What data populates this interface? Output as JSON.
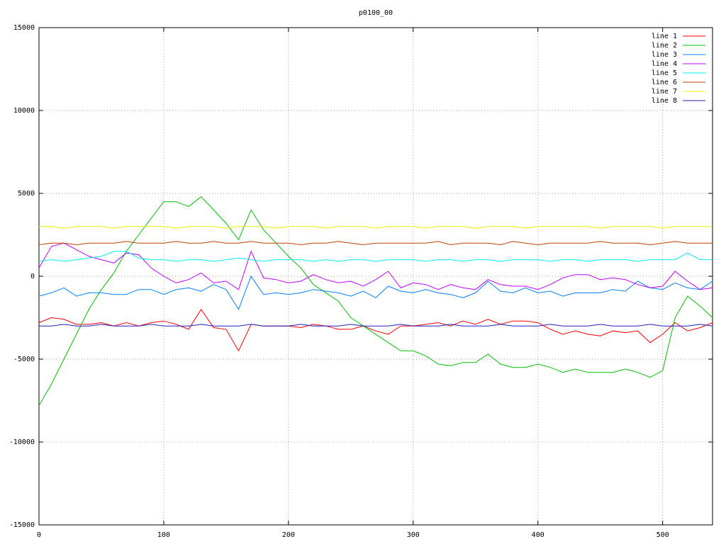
{
  "chart_data": {
    "type": "line",
    "title": "p0100_00",
    "x": [
      0,
      10,
      20,
      30,
      40,
      50,
      60,
      70,
      80,
      90,
      100,
      110,
      120,
      130,
      140,
      150,
      160,
      170,
      180,
      190,
      200,
      210,
      220,
      230,
      240,
      250,
      260,
      270,
      280,
      290,
      300,
      310,
      320,
      330,
      340,
      350,
      360,
      370,
      380,
      390,
      400,
      410,
      420,
      430,
      440,
      450,
      460,
      470,
      480,
      490,
      500,
      510,
      520,
      530,
      540
    ],
    "xlim": [
      0,
      540
    ],
    "xticks": [
      0,
      100,
      200,
      300,
      400,
      500
    ],
    "ylim": [
      -15000,
      15000
    ],
    "yticks": [
      -15000,
      -10000,
      -5000,
      0,
      5000,
      10000,
      15000
    ],
    "grid": true,
    "legend": "top-right",
    "series": [
      {
        "name": "line 1",
        "color": "#ff0000",
        "values": [
          -2800,
          -2500,
          -2600,
          -2900,
          -2900,
          -2800,
          -3000,
          -2800,
          -3000,
          -2800,
          -2700,
          -2900,
          -3200,
          -2000,
          -3100,
          -3200,
          -4500,
          -2900,
          -3000,
          -3000,
          -3000,
          -3100,
          -2900,
          -3000,
          -3200,
          -3200,
          -3000,
          -3300,
          -3500,
          -3000,
          -3000,
          -2900,
          -2800,
          -3000,
          -2700,
          -2900,
          -2600,
          -2900,
          -2700,
          -2700,
          -2800,
          -3200,
          -3500,
          -3300,
          -3500,
          -3600,
          -3300,
          -3400,
          -3300,
          -4000,
          -3500,
          -2800,
          -3300,
          -3100,
          -2800
        ]
      },
      {
        "name": "line 2",
        "color": "#00c000",
        "values": [
          -7800,
          -6500,
          -5000,
          -3500,
          -2000,
          -800,
          200,
          1500,
          2500,
          3500,
          4500,
          4500,
          4200,
          4800,
          4000,
          3200,
          2200,
          4000,
          2800,
          2000,
          1200,
          500,
          -500,
          -1000,
          -1500,
          -2500,
          -3000,
          -3500,
          -4000,
          -4500,
          -4500,
          -4800,
          -5300,
          -5400,
          -5200,
          -5200,
          -4700,
          -5300,
          -5500,
          -5500,
          -5300,
          -5500,
          -5800,
          -5600,
          -5800,
          -5800,
          -5800,
          -5600,
          -5800,
          -6100,
          -5700,
          -2500,
          -1200,
          -1800,
          -2500
        ]
      },
      {
        "name": "line 3",
        "color": "#0080ff",
        "values": [
          -1200,
          -1000,
          -700,
          -1200,
          -1000,
          -1000,
          -1100,
          -1100,
          -800,
          -800,
          -1100,
          -800,
          -700,
          -900,
          -500,
          -800,
          -2000,
          0,
          -1100,
          -1000,
          -1100,
          -1000,
          -800,
          -900,
          -1000,
          -1200,
          -900,
          -1300,
          -600,
          -900,
          -1000,
          -800,
          -1000,
          -1100,
          -1300,
          -1000,
          -300,
          -900,
          -1000,
          -700,
          -1000,
          -900,
          -1200,
          -1000,
          -1000,
          -1000,
          -800,
          -900,
          -300,
          -700,
          -800,
          -400,
          -700,
          -800,
          -300
        ]
      },
      {
        "name": "line 4",
        "color": "#c000ff",
        "values": [
          500,
          1800,
          2000,
          1600,
          1200,
          1000,
          800,
          1400,
          1300,
          500,
          0,
          -400,
          -200,
          200,
          -400,
          -300,
          -800,
          1500,
          -100,
          -200,
          -400,
          -300,
          100,
          -200,
          -400,
          -300,
          -600,
          -200,
          300,
          -700,
          -400,
          -500,
          -800,
          -500,
          -700,
          -800,
          -200,
          -500,
          -600,
          -600,
          -800,
          -500,
          -100,
          100,
          100,
          -200,
          -100,
          -200,
          -500,
          -700,
          -600,
          300,
          -300,
          -800,
          -700
        ]
      },
      {
        "name": "line 5",
        "color": "#00eeee",
        "values": [
          900,
          1000,
          900,
          1000,
          1100,
          1200,
          1500,
          1500,
          1100,
          1000,
          1000,
          900,
          1000,
          1000,
          900,
          1000,
          1100,
          1000,
          900,
          1000,
          1000,
          1000,
          900,
          1000,
          900,
          1000,
          1000,
          900,
          1000,
          1000,
          1000,
          900,
          1000,
          1000,
          900,
          1000,
          1000,
          900,
          1000,
          1000,
          1000,
          900,
          1000,
          1000,
          900,
          1000,
          1000,
          1000,
          900,
          1000,
          1000,
          1000,
          1400,
          1000,
          1000
        ]
      },
      {
        "name": "line 6",
        "color": "#c04000",
        "values": [
          1900,
          2000,
          2000,
          1900,
          2000,
          2000,
          2000,
          2100,
          2000,
          2000,
          2000,
          2100,
          2000,
          2000,
          2100,
          2000,
          2000,
          2100,
          2000,
          2000,
          2000,
          1900,
          2000,
          2000,
          2100,
          2000,
          1900,
          2000,
          2000,
          2000,
          2000,
          2000,
          2100,
          1900,
          2000,
          2000,
          2000,
          1900,
          2100,
          2000,
          1900,
          2000,
          2000,
          2000,
          2000,
          2100,
          2000,
          2000,
          2000,
          1900,
          2000,
          2100,
          2000,
          2000,
          2000
        ]
      },
      {
        "name": "line 7",
        "color": "#eeee00",
        "values": [
          3000,
          3000,
          2900,
          3000,
          3000,
          3000,
          2900,
          3000,
          3000,
          3000,
          3000,
          2900,
          3000,
          3000,
          3000,
          2900,
          3000,
          3000,
          3000,
          2900,
          3000,
          3000,
          3000,
          2900,
          3000,
          3000,
          3000,
          2900,
          3000,
          3000,
          3000,
          2900,
          3000,
          3000,
          3000,
          2900,
          3000,
          3000,
          3000,
          2900,
          3000,
          3000,
          3000,
          3000,
          3000,
          2900,
          3000,
          3000,
          3000,
          3000,
          2900,
          3000,
          3000,
          3000,
          3000
        ]
      },
      {
        "name": "line 8",
        "color": "#2020c0",
        "values": [
          -3000,
          -3000,
          -2900,
          -3000,
          -3000,
          -2900,
          -3000,
          -3000,
          -3000,
          -2900,
          -3000,
          -3000,
          -3000,
          -2900,
          -3000,
          -3000,
          -3000,
          -2900,
          -3000,
          -3000,
          -3000,
          -2900,
          -3000,
          -3000,
          -3000,
          -2900,
          -3000,
          -3000,
          -3000,
          -2900,
          -3000,
          -3000,
          -3000,
          -2900,
          -3000,
          -3000,
          -3000,
          -2900,
          -3000,
          -3000,
          -3000,
          -2900,
          -3000,
          -3000,
          -3000,
          -2900,
          -3000,
          -3000,
          -3000,
          -2900,
          -3000,
          -3000,
          -3000,
          -2900,
          -3000
        ]
      }
    ]
  }
}
